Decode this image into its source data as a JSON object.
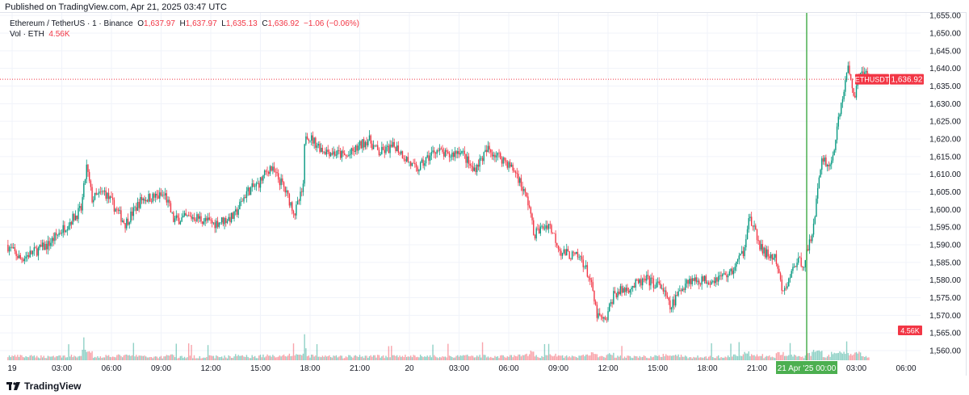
{
  "published": "Published on TradingView.com, Apr 21, 2025 03:47 UTC",
  "legend": {
    "symbol": "Ethereum / TetherUS · 1 · Binance",
    "o_label": "O",
    "o": "1,637.97",
    "h_label": "H",
    "h": "1,637.97",
    "l_label": "L",
    "l": "1,635.13",
    "c_label": "C",
    "c": "1,636.92",
    "change": "−1.06 (−0.06%)",
    "vol_label": "Vol · ETH",
    "vol": "4.56K"
  },
  "price_tag": {
    "symbol": "ETHUSDT",
    "value": "1,636.92"
  },
  "volume_tag": "4.56K",
  "crosshair_label": "21 Apr '25   00:00",
  "footer": {
    "brand": "TradingView",
    "logo_icon": "tradingview-logo-icon"
  },
  "colors": {
    "up": "#089981",
    "down": "#f23645",
    "crosshair": "#4caf50",
    "grid": "#f0f3fa"
  },
  "chart_data": {
    "type": "candlestick",
    "interval": "1 minute",
    "ylim": [
      1555,
      1655
    ],
    "y_ticks": [
      "1,560.00",
      "1,565.00",
      "1,570.00",
      "1,575.00",
      "1,580.00",
      "1,585.00",
      "1,590.00",
      "1,595.00",
      "1,600.00",
      "1,605.00",
      "1,610.00",
      "1,615.00",
      "1,620.00",
      "1,625.00",
      "1,630.00",
      "1,635.00",
      "1,640.00",
      "1,645.00",
      "1,650.00",
      "1,655.00"
    ],
    "x_ticks": [
      {
        "t": "2025-04-19T00:00",
        "label": "19"
      },
      {
        "t": "2025-04-19T03:00",
        "label": "03:00"
      },
      {
        "t": "2025-04-19T06:00",
        "label": "06:00"
      },
      {
        "t": "2025-04-19T09:00",
        "label": "09:00"
      },
      {
        "t": "2025-04-19T12:00",
        "label": "12:00"
      },
      {
        "t": "2025-04-19T15:00",
        "label": "15:00"
      },
      {
        "t": "2025-04-19T18:00",
        "label": "18:00"
      },
      {
        "t": "2025-04-19T21:00",
        "label": "21:00"
      },
      {
        "t": "2025-04-20T00:00",
        "label": "20"
      },
      {
        "t": "2025-04-20T03:00",
        "label": "03:00"
      },
      {
        "t": "2025-04-20T06:00",
        "label": "06:00"
      },
      {
        "t": "2025-04-20T09:00",
        "label": "09:00"
      },
      {
        "t": "2025-04-20T12:00",
        "label": "12:00"
      },
      {
        "t": "2025-04-20T15:00",
        "label": "15:00"
      },
      {
        "t": "2025-04-20T18:00",
        "label": "18:00"
      },
      {
        "t": "2025-04-20T21:00",
        "label": "21:00"
      },
      {
        "t": "2025-04-21T03:00",
        "label": "03:00"
      },
      {
        "t": "2025-04-21T06:00",
        "label": "06:00"
      }
    ],
    "crosshair_time": "2025-04-21T00:00",
    "last_price": 1636.92,
    "close_path": [
      [
        "2025-04-18T23:40",
        1590
      ],
      [
        "2025-04-19T00:30",
        1586
      ],
      [
        "2025-04-19T02:10",
        1590
      ],
      [
        "2025-04-19T03:10",
        1595
      ],
      [
        "2025-04-19T04:10",
        1600
      ],
      [
        "2025-04-19T04:30",
        1612
      ],
      [
        "2025-04-19T04:50",
        1603
      ],
      [
        "2025-04-19T05:35",
        1605
      ],
      [
        "2025-04-19T06:50",
        1596
      ],
      [
        "2025-04-19T07:50",
        1603
      ],
      [
        "2025-04-19T09:15",
        1604
      ],
      [
        "2025-04-19T09:45",
        1597
      ],
      [
        "2025-04-19T11:00",
        1598
      ],
      [
        "2025-04-19T12:10",
        1596
      ],
      [
        "2025-04-19T13:25",
        1598
      ],
      [
        "2025-04-19T14:10",
        1605
      ],
      [
        "2025-04-19T14:50",
        1607
      ],
      [
        "2025-04-19T15:35",
        1612
      ],
      [
        "2025-04-19T16:20",
        1607
      ],
      [
        "2025-04-19T17:05",
        1599
      ],
      [
        "2025-04-19T17:35",
        1606
      ],
      [
        "2025-04-19T17:42",
        1622
      ],
      [
        "2025-04-19T18:05",
        1620
      ],
      [
        "2025-04-19T18:45",
        1617
      ],
      [
        "2025-04-19T20:15",
        1615
      ],
      [
        "2025-04-19T21:30",
        1620
      ],
      [
        "2025-04-19T22:10",
        1616
      ],
      [
        "2025-04-19T23:10",
        1618
      ],
      [
        "2025-04-20T00:25",
        1611
      ],
      [
        "2025-04-20T01:35",
        1617
      ],
      [
        "2025-04-20T02:20",
        1615
      ],
      [
        "2025-04-20T03:05",
        1617
      ],
      [
        "2025-04-20T03:50",
        1611
      ],
      [
        "2025-04-20T04:45",
        1617
      ],
      [
        "2025-04-20T05:45",
        1614
      ],
      [
        "2025-04-20T06:30",
        1610
      ],
      [
        "2025-04-20T07:15",
        1601
      ],
      [
        "2025-04-20T07:30",
        1593
      ],
      [
        "2025-04-20T08:25",
        1596
      ],
      [
        "2025-04-20T09:10",
        1588
      ],
      [
        "2025-04-20T10:25",
        1586
      ],
      [
        "2025-04-20T10:55",
        1580
      ],
      [
        "2025-04-20T11:20",
        1570
      ],
      [
        "2025-04-20T11:50",
        1568
      ],
      [
        "2025-04-20T12:20",
        1576
      ],
      [
        "2025-04-20T13:20",
        1578
      ],
      [
        "2025-04-20T14:20",
        1580
      ],
      [
        "2025-04-20T15:15",
        1578
      ],
      [
        "2025-04-20T15:45",
        1572
      ],
      [
        "2025-04-20T16:45",
        1580
      ],
      [
        "2025-04-20T18:10",
        1580
      ],
      [
        "2025-04-20T19:25",
        1582
      ],
      [
        "2025-04-20T20:10",
        1588
      ],
      [
        "2025-04-20T20:30",
        1598
      ],
      [
        "2025-04-20T21:20",
        1588
      ],
      [
        "2025-04-20T22:05",
        1586
      ],
      [
        "2025-04-20T22:35",
        1576
      ],
      [
        "2025-04-20T23:20",
        1585
      ],
      [
        "2025-04-20T23:50",
        1585
      ],
      [
        "2025-04-21T00:17",
        1592
      ],
      [
        "2025-04-21T00:40",
        1605
      ],
      [
        "2025-04-21T00:55",
        1615
      ],
      [
        "2025-04-21T01:25",
        1612
      ],
      [
        "2025-04-21T01:45",
        1620
      ],
      [
        "2025-04-21T02:05",
        1630
      ],
      [
        "2025-04-21T02:30",
        1640
      ],
      [
        "2025-04-21T02:55",
        1632
      ],
      [
        "2025-04-21T03:15",
        1640
      ],
      [
        "2025-04-21T03:47",
        1636.92
      ]
    ]
  }
}
